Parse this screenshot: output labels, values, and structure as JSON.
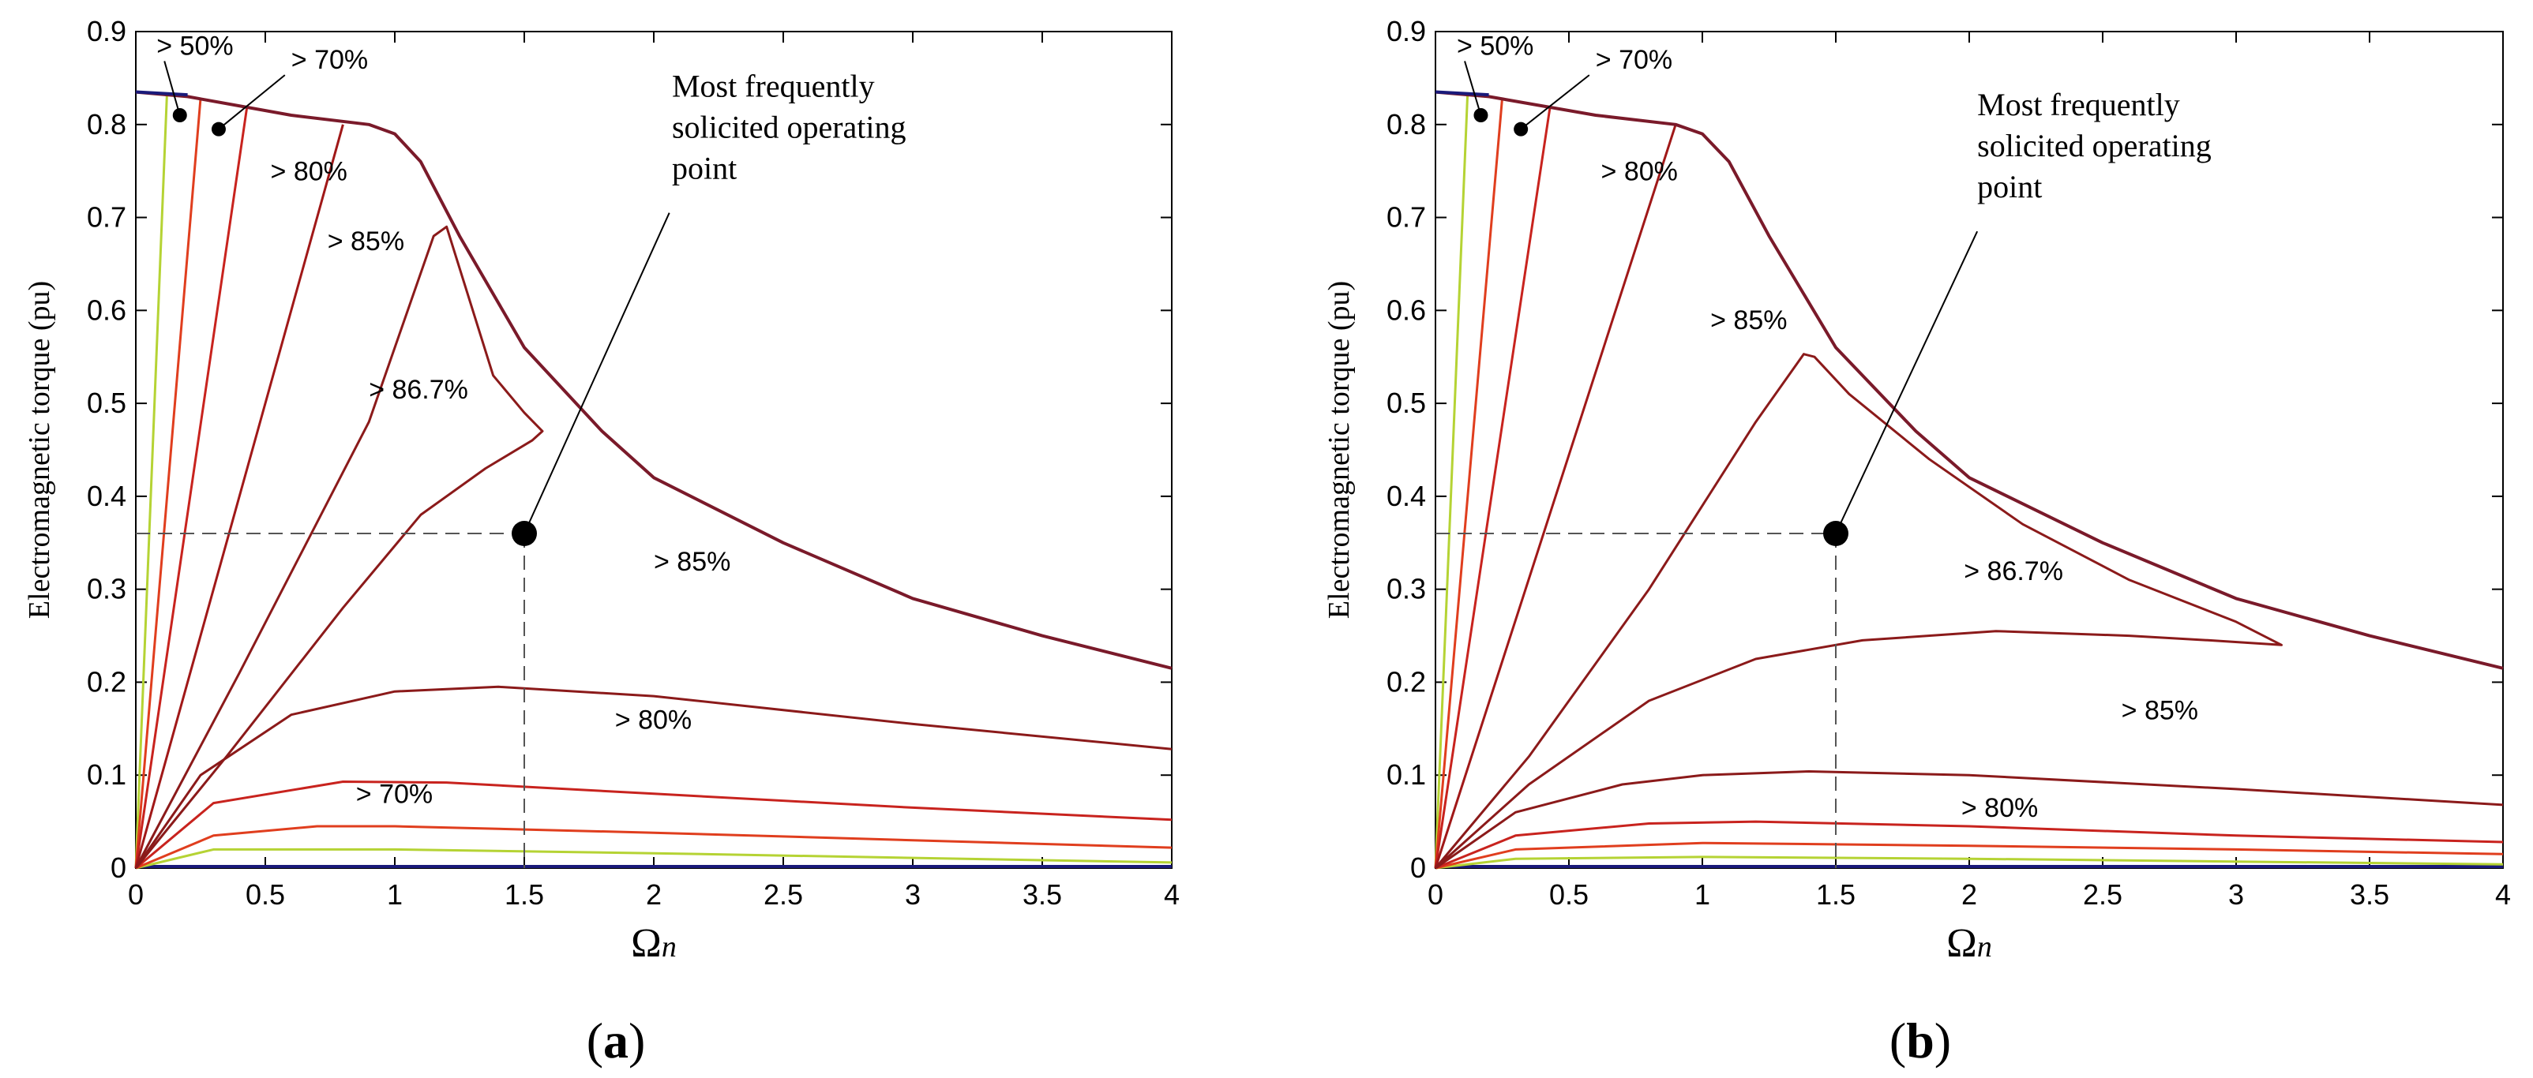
{
  "chart_data": [
    {
      "panel_label": "a",
      "caption_open": "(",
      "caption_close": ")",
      "type": "line",
      "subtype": "efficiency contour map",
      "xlabel": "Ω",
      "xlabel_subscript": "n",
      "ylabel": "Electromagnetic torque (pu)",
      "xlim": [
        0,
        4
      ],
      "ylim": [
        0,
        0.9
      ],
      "xticks": [
        0,
        0.5,
        1,
        1.5,
        2,
        2.5,
        3,
        3.5,
        4
      ],
      "xtick_labels": [
        "0",
        "0.5",
        "1",
        "1.5",
        "2",
        "2.5",
        "3",
        "3.5",
        "4"
      ],
      "yticks": [
        0,
        0.1,
        0.2,
        0.3,
        0.4,
        0.5,
        0.6,
        0.7,
        0.8,
        0.9
      ],
      "ytick_labels": [
        "0",
        "0.1",
        "0.2",
        "0.3",
        "0.4",
        "0.5",
        "0.6",
        "0.7",
        "0.8",
        "0.9"
      ],
      "envelope": [
        [
          0,
          0.835
        ],
        [
          0.2,
          0.83
        ],
        [
          0.6,
          0.81
        ],
        [
          0.9,
          0.8
        ],
        [
          1.0,
          0.79
        ],
        [
          1.1,
          0.76
        ],
        [
          1.25,
          0.68
        ],
        [
          1.5,
          0.56
        ],
        [
          1.8,
          0.47
        ],
        [
          2.0,
          0.42
        ],
        [
          2.5,
          0.35
        ],
        [
          3.0,
          0.29
        ],
        [
          3.5,
          0.25
        ],
        [
          4.0,
          0.215
        ]
      ],
      "contours": [
        {
          "name": "> 50%",
          "color": "#b5d334",
          "points": [
            [
              0,
              0
            ],
            [
              0.12,
              0.832
            ]
          ]
        },
        {
          "name": "> 50%",
          "color": "#b5d334",
          "points": [
            [
              0,
              0
            ],
            [
              0.3,
              0.02
            ],
            [
              1.0,
              0.02
            ],
            [
              2.0,
              0.016
            ],
            [
              4.0,
              0.006
            ]
          ]
        },
        {
          "name": "> 70%",
          "color": "#e03e1e",
          "points": [
            [
              0,
              0
            ],
            [
              0.25,
              0.828
            ]
          ]
        },
        {
          "name": "> 70%",
          "color": "#e03e1e",
          "points": [
            [
              0,
              0
            ],
            [
              0.3,
              0.035
            ],
            [
              0.7,
              0.045
            ],
            [
              1.0,
              0.045
            ],
            [
              2.0,
              0.038
            ],
            [
              3.0,
              0.03
            ],
            [
              4.0,
              0.022
            ]
          ]
        },
        {
          "name": "> 80%",
          "color": "#c8231e",
          "points": [
            [
              0,
              0
            ],
            [
              0.43,
              0.82
            ]
          ]
        },
        {
          "name": "> 80%",
          "color": "#c8231e",
          "points": [
            [
              0,
              0
            ],
            [
              0.3,
              0.07
            ],
            [
              0.8,
              0.093
            ],
            [
              1.2,
              0.092
            ],
            [
              2.0,
              0.08
            ],
            [
              3.0,
              0.065
            ],
            [
              4.0,
              0.052
            ]
          ]
        },
        {
          "name": "> 85%",
          "color": "#a01818",
          "points": [
            [
              0,
              0
            ],
            [
              0.8,
              0.8
            ]
          ]
        },
        {
          "name": "> 85%",
          "color": "#8b1a1a",
          "points": [
            [
              0,
              0
            ],
            [
              0.25,
              0.1
            ],
            [
              0.6,
              0.165
            ],
            [
              1.0,
              0.19
            ],
            [
              1.4,
              0.195
            ],
            [
              2.0,
              0.185
            ],
            [
              3.0,
              0.155
            ],
            [
              4.0,
              0.128
            ]
          ]
        },
        {
          "name": "> 86.7%",
          "color": "#8b1a1a",
          "points": [
            [
              0,
              0
            ],
            [
              0.35,
              0.12
            ],
            [
              0.8,
              0.28
            ],
            [
              1.1,
              0.38
            ],
            [
              1.35,
              0.43
            ],
            [
              1.53,
              0.46
            ],
            [
              1.57,
              0.47
            ],
            [
              1.5,
              0.49
            ],
            [
              1.38,
              0.53
            ],
            [
              1.2,
              0.69
            ],
            [
              1.15,
              0.68
            ],
            [
              0.9,
              0.48
            ],
            [
              0.4,
              0.21
            ],
            [
              0,
              0
            ]
          ]
        }
      ],
      "region_labels": [
        {
          "text": "> 50%",
          "x": 0.08,
          "y": 0.875
        },
        {
          "text": "> 70%",
          "x": 0.6,
          "y": 0.86
        },
        {
          "text": "> 80%",
          "x": 0.52,
          "y": 0.74
        },
        {
          "text": "> 85%",
          "x": 0.74,
          "y": 0.665
        },
        {
          "text": "> 86.7%",
          "x": 0.9,
          "y": 0.505
        },
        {
          "text": "> 85%",
          "x": 2.0,
          "y": 0.32
        },
        {
          "text": "> 80%",
          "x": 1.85,
          "y": 0.15
        },
        {
          "text": "> 70%",
          "x": 0.85,
          "y": 0.07
        }
      ],
      "small_markers": [
        [
          0.17,
          0.81
        ],
        [
          0.32,
          0.795
        ]
      ],
      "operating_point": {
        "x": 1.5,
        "y": 0.36,
        "label_lines": [
          "Most frequently",
          "solicited operating",
          "point"
        ],
        "label_x": 2.07,
        "label_y": 0.83,
        "leader_end_x": 2.06,
        "leader_end_y": 0.705
      }
    },
    {
      "panel_label": "b",
      "caption_open": "(",
      "caption_close": ")",
      "type": "line",
      "subtype": "efficiency contour map",
      "xlabel": "Ω",
      "xlabel_subscript": "n",
      "ylabel": "Electromagnetic torque (pu)",
      "xlim": [
        0,
        4
      ],
      "ylim": [
        0,
        0.9
      ],
      "xticks": [
        0,
        0.5,
        1,
        1.5,
        2,
        2.5,
        3,
        3.5,
        4
      ],
      "xtick_labels": [
        "0",
        "0.5",
        "1",
        "1.5",
        "2",
        "2.5",
        "3",
        "3.5",
        "4"
      ],
      "yticks": [
        0,
        0.1,
        0.2,
        0.3,
        0.4,
        0.5,
        0.6,
        0.7,
        0.8,
        0.9
      ],
      "ytick_labels": [
        "0",
        "0.1",
        "0.2",
        "0.3",
        "0.4",
        "0.5",
        "0.6",
        "0.7",
        "0.8",
        "0.9"
      ],
      "envelope": [
        [
          0,
          0.835
        ],
        [
          0.2,
          0.83
        ],
        [
          0.6,
          0.81
        ],
        [
          0.9,
          0.8
        ],
        [
          1.0,
          0.79
        ],
        [
          1.1,
          0.76
        ],
        [
          1.25,
          0.68
        ],
        [
          1.5,
          0.56
        ],
        [
          1.8,
          0.47
        ],
        [
          2.0,
          0.42
        ],
        [
          2.5,
          0.35
        ],
        [
          3.0,
          0.29
        ],
        [
          3.5,
          0.25
        ],
        [
          4.0,
          0.215
        ]
      ],
      "contours": [
        {
          "name": "> 50%",
          "color": "#b5d334",
          "points": [
            [
              0,
              0
            ],
            [
              0.12,
              0.832
            ]
          ]
        },
        {
          "name": "> 50%",
          "color": "#b5d334",
          "points": [
            [
              0,
              0
            ],
            [
              0.3,
              0.01
            ],
            [
              1.0,
              0.012
            ],
            [
              2.0,
              0.01
            ],
            [
              4.0,
              0.004
            ]
          ]
        },
        {
          "name": "> 70%",
          "color": "#e03e1e",
          "points": [
            [
              0,
              0
            ],
            [
              0.25,
              0.828
            ]
          ]
        },
        {
          "name": "> 70%",
          "color": "#e03e1e",
          "points": [
            [
              0,
              0
            ],
            [
              0.3,
              0.02
            ],
            [
              1.0,
              0.027
            ],
            [
              2.0,
              0.024
            ],
            [
              3.0,
              0.02
            ],
            [
              4.0,
              0.015
            ]
          ]
        },
        {
          "name": "> 80%",
          "color": "#c8231e",
          "points": [
            [
              0,
              0
            ],
            [
              0.43,
              0.82
            ]
          ]
        },
        {
          "name": "> 80%",
          "color": "#c8231e",
          "points": [
            [
              0,
              0
            ],
            [
              0.3,
              0.035
            ],
            [
              0.8,
              0.048
            ],
            [
              1.2,
              0.05
            ],
            [
              2.0,
              0.045
            ],
            [
              3.0,
              0.035
            ],
            [
              4.0,
              0.028
            ]
          ]
        },
        {
          "name": "> 85%",
          "color": "#a01818",
          "points": [
            [
              0,
              0
            ],
            [
              0.9,
              0.8
            ]
          ]
        },
        {
          "name": "> 85%",
          "color": "#8b1a1a",
          "points": [
            [
              0,
              0
            ],
            [
              0.3,
              0.06
            ],
            [
              0.7,
              0.09
            ],
            [
              1.0,
              0.1
            ],
            [
              1.4,
              0.104
            ],
            [
              2.0,
              0.1
            ],
            [
              3.0,
              0.085
            ],
            [
              4.0,
              0.068
            ]
          ]
        },
        {
          "name": "> 86.7%",
          "color": "#8b1a1a",
          "points": [
            [
              0,
              0
            ],
            [
              0.35,
              0.09
            ],
            [
              0.8,
              0.18
            ],
            [
              1.2,
              0.225
            ],
            [
              1.6,
              0.245
            ],
            [
              2.1,
              0.255
            ],
            [
              2.6,
              0.25
            ],
            [
              2.9,
              0.245
            ],
            [
              3.17,
              0.24
            ],
            [
              3.0,
              0.265
            ],
            [
              2.6,
              0.31
            ],
            [
              2.2,
              0.37
            ],
            [
              1.85,
              0.44
            ],
            [
              1.55,
              0.51
            ],
            [
              1.42,
              0.55
            ],
            [
              1.38,
              0.553
            ],
            [
              1.2,
              0.48
            ],
            [
              0.8,
              0.3
            ],
            [
              0.35,
              0.12
            ],
            [
              0,
              0
            ]
          ]
        }
      ],
      "region_labels": [
        {
          "text": "> 50%",
          "x": 0.08,
          "y": 0.875
        },
        {
          "text": "> 70%",
          "x": 0.6,
          "y": 0.86
        },
        {
          "text": "> 80%",
          "x": 0.62,
          "y": 0.74
        },
        {
          "text": "> 85%",
          "x": 1.03,
          "y": 0.58
        },
        {
          "text": "> 86.7%",
          "x": 1.98,
          "y": 0.31
        },
        {
          "text": "> 85%",
          "x": 2.57,
          "y": 0.16
        },
        {
          "text": "> 80%",
          "x": 1.97,
          "y": 0.055
        }
      ],
      "small_markers": [
        [
          0.17,
          0.81
        ],
        [
          0.32,
          0.795
        ]
      ],
      "operating_point": {
        "x": 1.5,
        "y": 0.36,
        "label_lines": [
          "Most frequently",
          "solicited operating",
          "point"
        ],
        "label_x": 2.03,
        "label_y": 0.81,
        "leader_end_x": 2.03,
        "leader_end_y": 0.685
      }
    }
  ]
}
